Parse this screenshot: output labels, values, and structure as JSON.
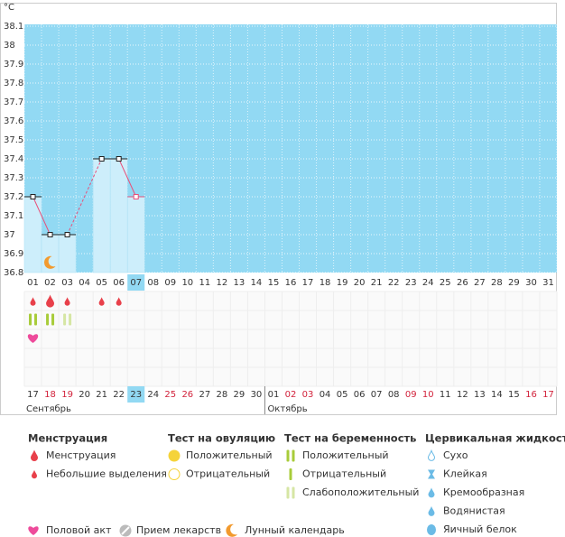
{
  "chart_data": {
    "type": "line",
    "y_label": "°C",
    "categories": [
      "01",
      "02",
      "03",
      "04",
      "05",
      "06",
      "07",
      "08",
      "09",
      "10",
      "11",
      "12",
      "13",
      "14",
      "15",
      "16",
      "17",
      "18",
      "19",
      "20",
      "21",
      "22",
      "23",
      "24",
      "25",
      "26",
      "27",
      "28",
      "29",
      "30",
      "31"
    ],
    "values": [
      37.2,
      37.0,
      37.0,
      null,
      37.4,
      37.4,
      37.2,
      null,
      null,
      null,
      null,
      null,
      null,
      null,
      null,
      null,
      null,
      null,
      null,
      null,
      null,
      null,
      null,
      null,
      null,
      null,
      null,
      null,
      null,
      null,
      null
    ],
    "ylim": [
      36.8,
      38.2
    ],
    "yticks": [
      36.8,
      36.9,
      37,
      37.1,
      37.2,
      37.3,
      37.4,
      37.5,
      37.6,
      37.7,
      37.8,
      37.9,
      38,
      38.1
    ],
    "grid": true,
    "color": "#e8507a",
    "background": "#92d9f3",
    "bar_color": "#cdeefb",
    "today": 6
  },
  "calendar": {
    "dates": [
      "17",
      "18",
      "19",
      "20",
      "21",
      "22",
      "23",
      "24",
      "25",
      "26",
      "27",
      "28",
      "29",
      "30",
      "01",
      "02",
      "03",
      "04",
      "05",
      "06",
      "07",
      "08",
      "09",
      "10",
      "11",
      "12",
      "13",
      "14",
      "15",
      "16",
      "17"
    ],
    "weekend": [
      1,
      2,
      8,
      9,
      15,
      16,
      22,
      23,
      29,
      30
    ],
    "months": [
      "Сентябрь",
      "Октябрь"
    ]
  },
  "events": {
    "menstruation": [
      {
        "day": "01",
        "kind": "light"
      },
      {
        "day": "02",
        "kind": "heavy"
      },
      {
        "day": "03",
        "kind": "light"
      },
      {
        "day": "05",
        "kind": "light"
      },
      {
        "day": "06",
        "kind": "light"
      }
    ],
    "pregnancy_test": [
      {
        "day": "01",
        "kind": "positive"
      },
      {
        "day": "02",
        "kind": "positive"
      },
      {
        "day": "03",
        "kind": "weak"
      }
    ],
    "intercourse": [
      "01"
    ],
    "moon": [
      "02"
    ]
  },
  "legend": {
    "groups": [
      {
        "title": "Менструация",
        "items": [
          "Менструация",
          "Небольшие выделения"
        ]
      },
      {
        "title": "Тест на овуляцию",
        "items": [
          "Положительный",
          "Отрицательный"
        ]
      },
      {
        "title": "Тест на беременность",
        "items": [
          "Положительный",
          "Отрицательный",
          "Слабоположительный"
        ]
      },
      {
        "title": "Цервикальная жидкость",
        "items": [
          "Сухо",
          "Клейкая",
          "Кремообразная",
          "Водянистая",
          "Яичный белок"
        ]
      }
    ],
    "other": [
      "Половой акт",
      "Прием лекарств",
      "Лунный календарь"
    ]
  }
}
